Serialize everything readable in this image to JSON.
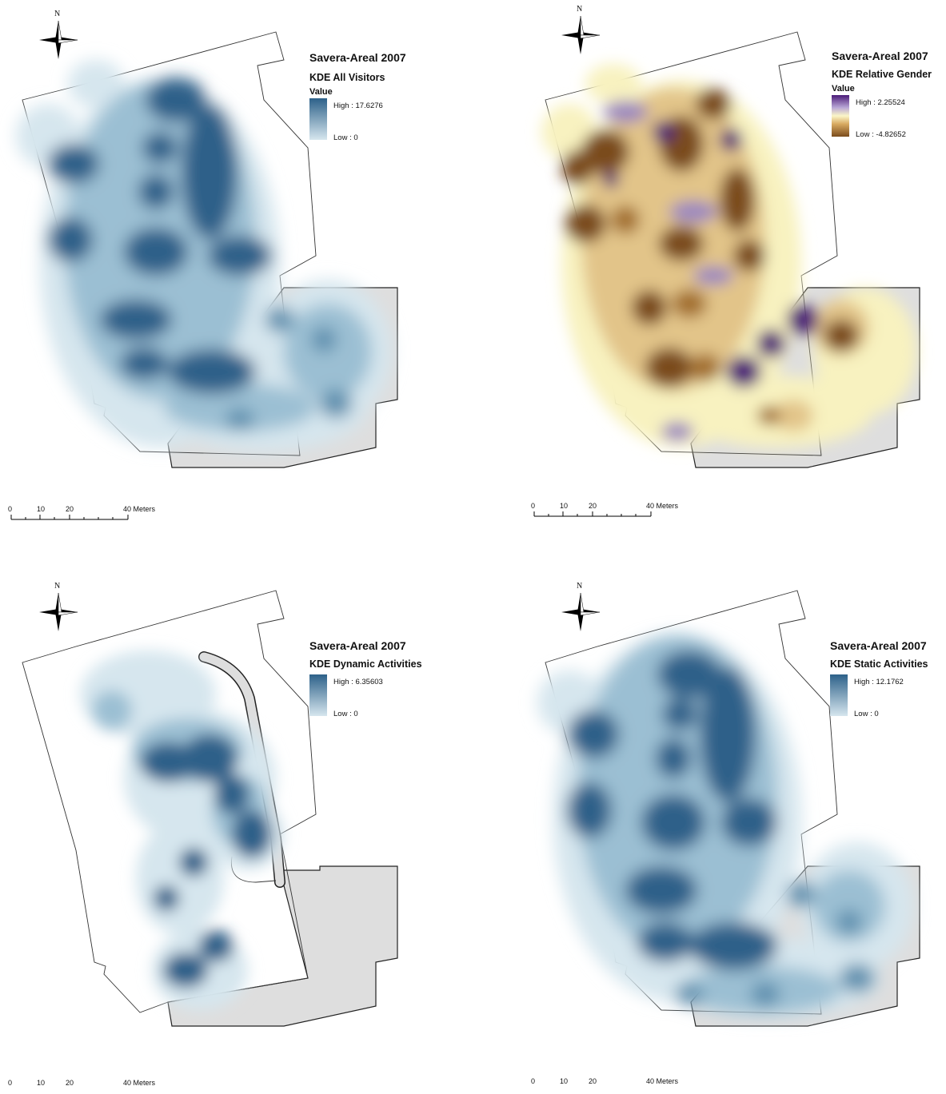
{
  "maps": [
    {
      "title": "Savera-Areal 2007",
      "subtitle": "KDE All Visitors",
      "value_label": "Value",
      "high_label": "High : 17.6276",
      "low_label": "Low : 0",
      "colors": {
        "high": "#2d6189",
        "low": "#d6e6ee"
      },
      "scale": {
        "ticks": [
          "0",
          "10",
          "20",
          "40 Meters"
        ]
      },
      "north_label": "N"
    },
    {
      "title": "Savera-Areal 2007",
      "subtitle": "KDE Relative Gender",
      "value_label": "Value",
      "high_label": "High : 2.25524",
      "low_label": "Low : -4.82652",
      "colors": {
        "high": "#4b1a78",
        "mid": "#fbf6c8",
        "low": "#7a4c1c"
      },
      "scale": {
        "ticks": [
          "0",
          "10",
          "20",
          "40 Meters"
        ]
      },
      "north_label": "N"
    },
    {
      "title": "Savera-Areal 2007",
      "subtitle": "KDE Dynamic Activities",
      "value_label": "",
      "high_label": "High : 6.35603",
      "low_label": "Low : 0",
      "colors": {
        "high": "#2d6189",
        "low": "#d6e6ee"
      },
      "scale": {
        "ticks": [
          "0",
          "10",
          "20",
          "40 Meters"
        ]
      },
      "north_label": "N"
    },
    {
      "title": "Savera-Areal 2007",
      "subtitle": "KDE Static Activities",
      "value_label": "",
      "high_label": "High : 12.1762",
      "low_label": "Low : 0",
      "colors": {
        "high": "#2d6189",
        "low": "#d6e6ee"
      },
      "scale": {
        "ticks": [
          "0",
          "10",
          "20",
          "40 Meters"
        ]
      },
      "north_label": "N"
    }
  ]
}
